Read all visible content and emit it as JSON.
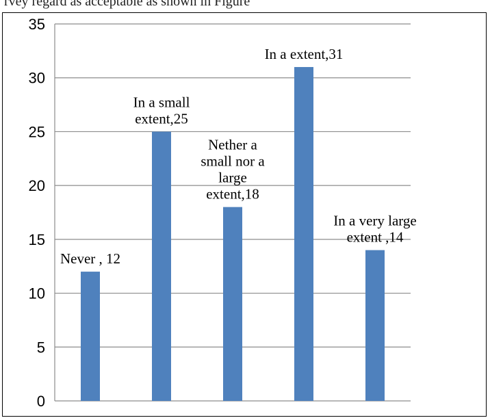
{
  "header": {
    "text": "rvey regard as acceptable as shown in Figure"
  },
  "chart_data": {
    "type": "bar",
    "categories": [
      "Never",
      "In a small extent",
      "Nether a small nor a large extent",
      "In a extent",
      "In a very large extent"
    ],
    "values": [
      12,
      25,
      18,
      31,
      14
    ],
    "data_labels": [
      [
        "Never , 12"
      ],
      [
        "In a small",
        "extent,25"
      ],
      [
        "Nether a",
        "small nor a",
        "large",
        "extent,18"
      ],
      [
        "In a extent,31"
      ],
      [
        "In a very large",
        "extent ,14"
      ]
    ],
    "ylim": [
      0,
      35
    ],
    "yticks": [
      0,
      5,
      10,
      15,
      20,
      25,
      30,
      35
    ],
    "grid": true,
    "bar_color": "#4f81bd",
    "grid_color": "#8c8c8c"
  }
}
